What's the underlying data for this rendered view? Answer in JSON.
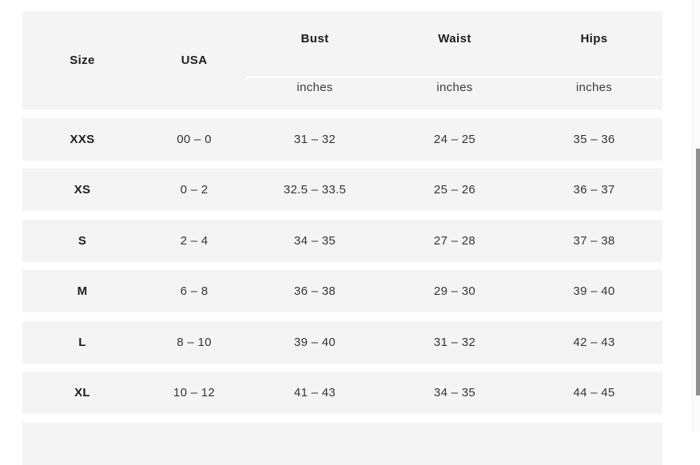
{
  "table": {
    "columns": [
      {
        "label": "Size",
        "unit": ""
      },
      {
        "label": "USA",
        "unit": ""
      },
      {
        "label": "Bust",
        "unit": "inches"
      },
      {
        "label": "Waist",
        "unit": "inches"
      },
      {
        "label": "Hips",
        "unit": "inches"
      }
    ],
    "rows": [
      {
        "size": "XXS",
        "usa": "00 – 0",
        "bust": "31 – 32",
        "waist": "24 – 25",
        "hips": "35 – 36"
      },
      {
        "size": "XS",
        "usa": "0 – 2",
        "bust": "32.5 – 33.5",
        "waist": "25 – 26",
        "hips": "36 – 37"
      },
      {
        "size": "S",
        "usa": "2 – 4",
        "bust": "34 – 35",
        "waist": "27 – 28",
        "hips": "37 – 38"
      },
      {
        "size": "M",
        "usa": "6 – 8",
        "bust": "36 – 38",
        "waist": "29 – 30",
        "hips": "39 – 40"
      },
      {
        "size": "L",
        "usa": "8 – 10",
        "bust": "39 – 40",
        "waist": "31 – 32",
        "hips": "42 – 43"
      },
      {
        "size": "XL",
        "usa": "10 – 12",
        "bust": "41 – 43",
        "waist": "34 – 35",
        "hips": "44 – 45"
      }
    ]
  },
  "colors": {
    "row_background": "#f4f4f4",
    "header_text": "#1c1c24",
    "body_text": "#33333b",
    "scrollbar_thumb": "#8f8f8f"
  }
}
